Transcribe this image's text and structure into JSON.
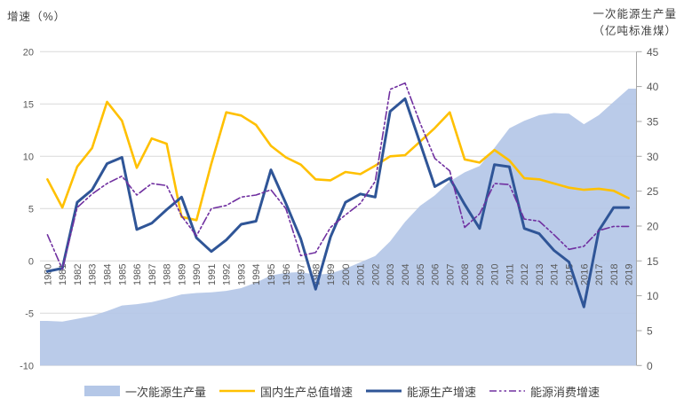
{
  "left_axis": {
    "title": "增速（%）",
    "ticks": [
      20,
      15,
      10,
      5,
      0,
      -5,
      -10
    ],
    "min": -10,
    "max": 20
  },
  "right_axis": {
    "title_line1": "一次能源生产量",
    "title_line2": "（亿吨标准煤）",
    "ticks": [
      45,
      40,
      35,
      30,
      25,
      20,
      15,
      10,
      5,
      0
    ],
    "min": 0,
    "max": 45
  },
  "colors": {
    "area_fill": "#B4C7E7",
    "gdp_line": "#FFC000",
    "production_line": "#2F5597",
    "consumption_line": "#7030A0",
    "gridline": "#D9D9D9",
    "right_axis_line": "#A6A6A6",
    "tick_label": "#595959",
    "legend_text": "#404040"
  },
  "legend": [
    {
      "label": "一次能源生产量",
      "type": "area"
    },
    {
      "label": "国内生产总值增速",
      "type": "line"
    },
    {
      "label": "能源生产增速",
      "type": "line"
    },
    {
      "label": "能源消费增速",
      "type": "dash-dot-line"
    }
  ],
  "chart_data": {
    "type": "area+line combo, dual axis",
    "x_label_rotation": -90,
    "grid": "horizontal, left-axis ticks",
    "legend_position": "bottom center",
    "left_axis_range": [
      -10,
      20
    ],
    "right_axis_range": [
      0,
      45
    ],
    "x": [
      1980,
      1981,
      1982,
      1983,
      1984,
      1985,
      1986,
      1987,
      1988,
      1989,
      1990,
      1991,
      1992,
      1993,
      1994,
      1995,
      1996,
      1997,
      1998,
      1999,
      2000,
      2001,
      2002,
      2003,
      2004,
      2005,
      2006,
      2007,
      2008,
      2009,
      2010,
      2011,
      2012,
      2013,
      2014,
      2015,
      2016,
      2017,
      2018,
      2019
    ],
    "series": [
      {
        "name": "一次能源生产量",
        "type": "area",
        "axis": "right",
        "unit": "亿吨标准煤",
        "values": [
          6.4,
          6.3,
          6.7,
          7.1,
          7.8,
          8.6,
          8.8,
          9.1,
          9.6,
          10.2,
          10.4,
          10.5,
          10.7,
          11.1,
          11.9,
          12.9,
          13.3,
          13.4,
          13.0,
          13.2,
          13.9,
          14.8,
          15.7,
          17.8,
          20.6,
          22.9,
          24.4,
          26.4,
          27.7,
          28.6,
          31.2,
          34.0,
          35.1,
          35.9,
          36.2,
          36.1,
          34.6,
          35.9,
          37.8,
          39.7
        ]
      },
      {
        "name": "国内生产总值增速",
        "type": "line",
        "axis": "left",
        "unit": "%",
        "values": [
          7.8,
          5.1,
          9.0,
          10.8,
          15.2,
          13.4,
          8.9,
          11.7,
          11.2,
          4.2,
          3.9,
          9.3,
          14.2,
          13.9,
          13.0,
          11.0,
          9.9,
          9.2,
          7.8,
          7.7,
          8.5,
          8.3,
          9.1,
          10.0,
          10.1,
          11.4,
          12.7,
          14.2,
          9.7,
          9.4,
          10.6,
          9.6,
          7.9,
          7.8,
          7.4,
          7.0,
          6.8,
          6.9,
          6.7,
          6.0
        ]
      },
      {
        "name": "能源生产增速",
        "type": "line",
        "axis": "left",
        "unit": "%",
        "values": [
          -1.0,
          -0.7,
          5.6,
          6.8,
          9.3,
          9.9,
          3.0,
          3.6,
          4.9,
          6.1,
          2.2,
          0.9,
          2.0,
          3.5,
          3.8,
          8.7,
          5.5,
          2.1,
          -2.7,
          2.3,
          5.6,
          6.4,
          6.1,
          14.3,
          15.5,
          11.3,
          7.1,
          7.9,
          5.4,
          3.1,
          9.2,
          9.0,
          3.1,
          2.6,
          1.0,
          -0.1,
          -4.4,
          2.9,
          5.1,
          5.1
        ]
      },
      {
        "name": "能源消费增速",
        "type": "line",
        "dash": "dash-dot-dot",
        "axis": "left",
        "unit": "%",
        "values": [
          2.5,
          -0.8,
          5.1,
          6.4,
          7.4,
          8.1,
          6.3,
          7.4,
          7.2,
          4.3,
          2.4,
          5.0,
          5.3,
          6.1,
          6.3,
          6.8,
          5.0,
          0.5,
          0.8,
          3.2,
          4.4,
          5.5,
          7.6,
          16.4,
          17.0,
          13.2,
          9.8,
          8.6,
          3.2,
          4.5,
          7.4,
          7.3,
          4.0,
          3.8,
          2.5,
          1.1,
          1.4,
          2.9,
          3.3,
          3.3
        ]
      }
    ]
  }
}
